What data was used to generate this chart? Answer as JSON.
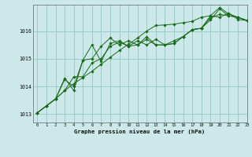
{
  "title": "Graphe pression niveau de la mer (hPa)",
  "bg_color": "#cce8e8",
  "grid_color": "#99cccc",
  "line_color": "#1a6b1a",
  "marker_color": "#1a6b1a",
  "xlim": [
    -0.5,
    23
  ],
  "ylim": [
    1012.7,
    1016.95
  ],
  "xticks": [
    0,
    1,
    2,
    3,
    4,
    5,
    6,
    7,
    8,
    9,
    10,
    11,
    12,
    13,
    14,
    15,
    16,
    17,
    18,
    19,
    20,
    21,
    22,
    23
  ],
  "yticks": [
    1013,
    1014,
    1015,
    1016
  ],
  "series": [
    [
      1013.05,
      1013.3,
      1013.55,
      1013.85,
      1014.1,
      1014.32,
      1014.55,
      1014.8,
      1015.05,
      1015.3,
      1015.52,
      1015.75,
      1016.0,
      1016.2,
      1016.22,
      1016.25,
      1016.3,
      1016.35,
      1016.5,
      1016.55,
      1016.5,
      1016.65,
      1016.42,
      1016.38
    ],
    [
      1013.05,
      1013.3,
      1013.55,
      1014.25,
      1014.0,
      1014.95,
      1015.0,
      1015.45,
      1015.75,
      1015.5,
      1015.65,
      1015.5,
      1015.7,
      1015.5,
      1015.5,
      1015.55,
      1015.8,
      1016.05,
      1016.1,
      1016.55,
      1016.85,
      1016.62,
      1016.5,
      1016.38
    ],
    [
      1013.05,
      1013.3,
      1013.55,
      1013.85,
      1014.35,
      1014.35,
      1014.85,
      1015.0,
      1015.45,
      1015.6,
      1015.45,
      1015.65,
      1015.5,
      1015.7,
      1015.5,
      1015.55,
      1015.8,
      1016.05,
      1016.1,
      1016.4,
      1016.8,
      1016.55,
      1016.5,
      1016.38
    ],
    [
      1013.05,
      1013.3,
      1013.55,
      1014.3,
      1013.85,
      1014.95,
      1015.5,
      1014.9,
      1015.55,
      1015.65,
      1015.45,
      1015.5,
      1015.8,
      1015.5,
      1015.5,
      1015.65,
      1015.8,
      1016.05,
      1016.1,
      1016.48,
      1016.6,
      1016.55,
      1016.5,
      1016.38
    ]
  ]
}
